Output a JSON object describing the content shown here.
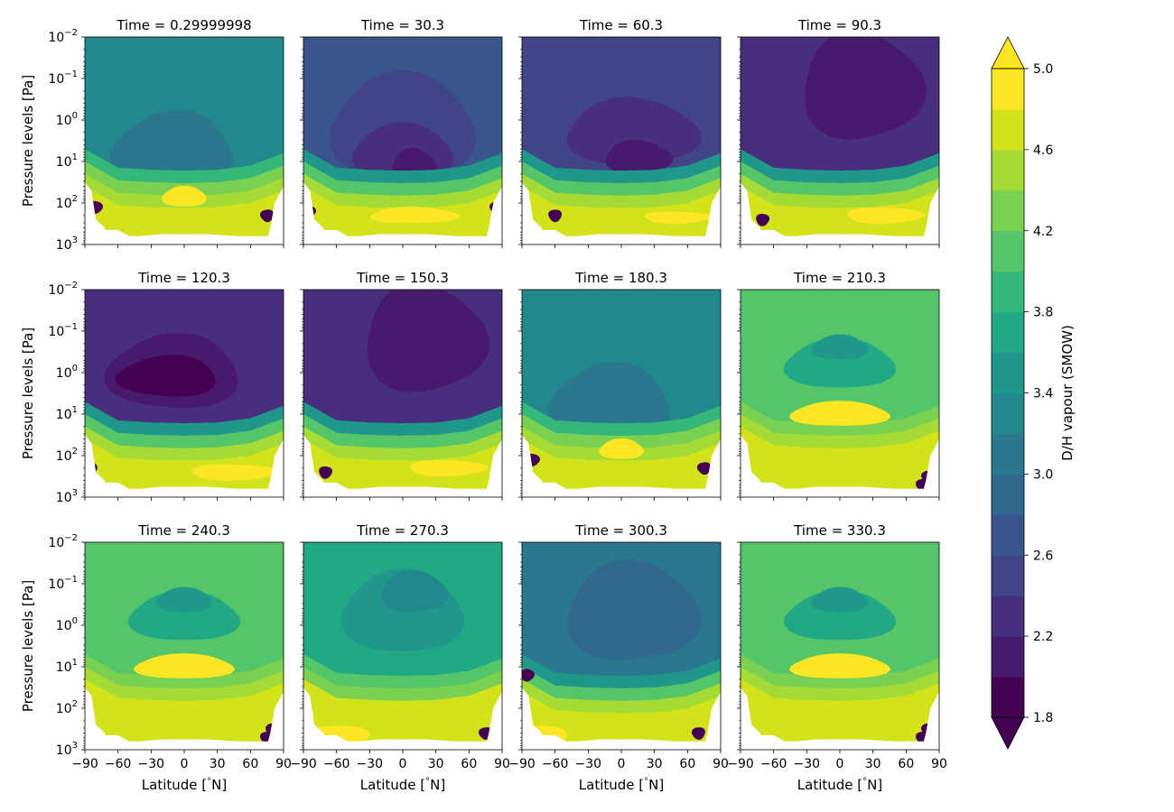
{
  "chart_data": {
    "type": "heatmap",
    "plot_kind": "filled-contour",
    "layout": {
      "rows": 3,
      "cols": 4
    },
    "panels": [
      {
        "title": "Time = 0.29999998",
        "regime": "teal"
      },
      {
        "title": "Time = 30.3",
        "regime": "blue"
      },
      {
        "title": "Time = 60.3",
        "regime": "indigo"
      },
      {
        "title": "Time = 90.3",
        "regime": "dark"
      },
      {
        "title": "Time = 120.3",
        "regime": "darkest"
      },
      {
        "title": "Time = 150.3",
        "regime": "dark"
      },
      {
        "title": "Time = 180.3",
        "regime": "teal"
      },
      {
        "title": "Time = 210.3",
        "regime": "green"
      },
      {
        "title": "Time = 240.3",
        "regime": "green"
      },
      {
        "title": "Time = 270.3",
        "regime": "greenteal"
      },
      {
        "title": "Time = 300.3",
        "regime": "blueteal"
      },
      {
        "title": "Time = 330.3",
        "regime": "green"
      }
    ],
    "x": {
      "label": "Latitude [$^\\circ$N]",
      "label_main": "Latitude [",
      "label_deg": "°",
      "label_end": "N]",
      "range": [
        -90,
        90
      ],
      "ticks": [
        -90,
        -60,
        -30,
        0,
        30,
        60,
        90
      ],
      "tick_labels": [
        "−90",
        "−60",
        "−30",
        "0",
        "30",
        "60",
        "90"
      ]
    },
    "y": {
      "label": "Pressure levels [Pa]",
      "scale": "log",
      "inverted": true,
      "range": [
        0.01,
        1000
      ],
      "ticks": [
        {
          "base": "10",
          "exp": "−2",
          "value": 0.01
        },
        {
          "base": "10",
          "exp": "−1",
          "value": 0.1
        },
        {
          "base": "10",
          "exp": "0",
          "value": 1
        },
        {
          "base": "10",
          "exp": "1",
          "value": 10
        },
        {
          "base": "10",
          "exp": "2",
          "value": 100
        },
        {
          "base": "10",
          "exp": "3",
          "value": 1000
        }
      ]
    },
    "colorbar": {
      "label": "D/H vapour (SMOW)",
      "min": 1.8,
      "max": 5.0,
      "levels": 16,
      "extend": "both",
      "ticks": [
        "1.8",
        "2.2",
        "2.6",
        "3.0",
        "3.4",
        "3.8",
        "4.2",
        "4.6",
        "5.0"
      ],
      "colormap": "viridis",
      "colors": [
        "#440154",
        "#481a6c",
        "#472f7d",
        "#414487",
        "#39568c",
        "#31688e",
        "#2a788e",
        "#23888e",
        "#1f988b",
        "#22a884",
        "#35b779",
        "#54c568",
        "#7ad151",
        "#a5db36",
        "#d2e21b",
        "#fde725"
      ]
    }
  }
}
